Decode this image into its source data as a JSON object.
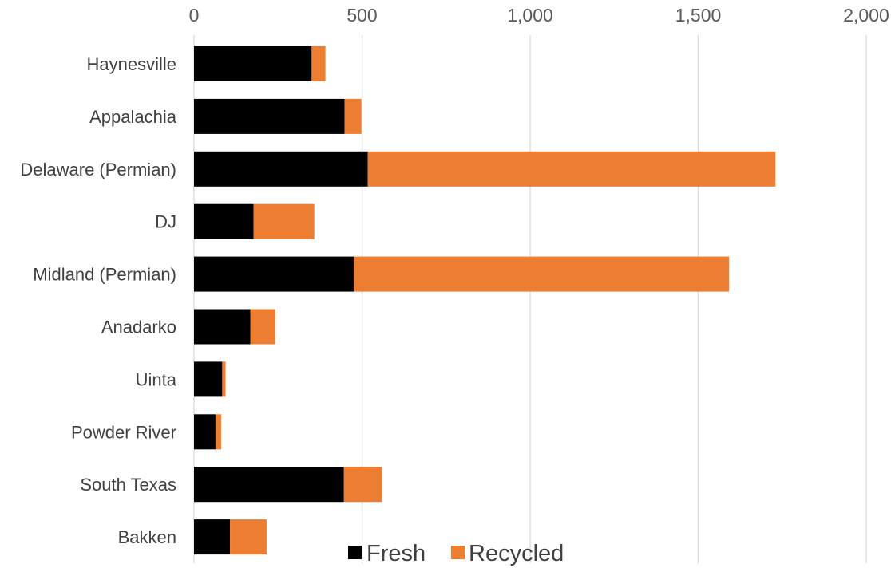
{
  "chart_data": {
    "type": "bar",
    "orientation": "horizontal",
    "stacked": true,
    "title": "",
    "xlabel": "",
    "ylabel": "",
    "categories": [
      "Haynesville",
      "Appalachia",
      "Delaware (Permian)",
      "DJ",
      "Midland (Permian)",
      "Anadarko",
      "Uinta",
      "Powder River",
      "South Texas",
      "Bakken"
    ],
    "series": [
      {
        "name": "Fresh",
        "color": "#000000",
        "values": [
          350,
          448,
          517,
          177,
          475,
          168,
          84,
          64,
          446,
          107
        ]
      },
      {
        "name": "Recycled",
        "color": "#ed7d31",
        "values": [
          41,
          50,
          1213,
          181,
          1117,
          74,
          10,
          17,
          113,
          109
        ]
      }
    ],
    "xlim": [
      0,
      2000
    ],
    "x_ticks": [
      0,
      500,
      1000,
      1500,
      2000
    ],
    "x_tick_labels": [
      "0",
      "500",
      "1,000",
      "1,500",
      "2,000"
    ],
    "x_axis_position": "top",
    "grid": "vertical",
    "legend": {
      "position": "bottom-center",
      "entries": [
        "Fresh",
        "Recycled"
      ]
    }
  }
}
